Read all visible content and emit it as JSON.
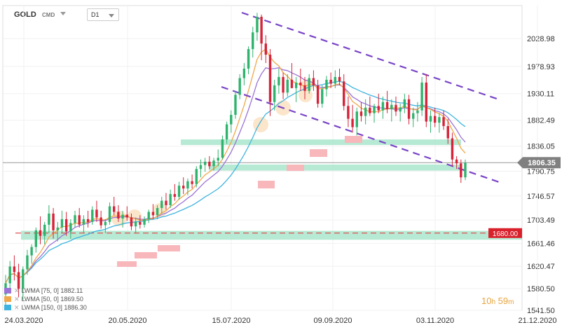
{
  "toolbar": {
    "symbol": "GOLD",
    "symbol_type": "CMD",
    "interval": "D1"
  },
  "chart_data": {
    "type": "candlestick",
    "instrument": "GOLD",
    "timeframe": "D1",
    "ylim": [
      1530,
      2095
    ],
    "y_ticks": [
      "2028.98",
      "1978.93",
      "1930.11",
      "1882.49",
      "1836.05",
      "1790.75",
      "1746.57",
      "1703.49",
      "1661.46",
      "1620.47",
      "1580.50",
      "1541.50"
    ],
    "x_ticks": [
      "24.03.2020",
      "20.05.2020",
      "15.07.2020",
      "09.09.2020",
      "03.11.2020",
      "21.12.2020"
    ],
    "current_price": "1806.35",
    "level_label": "1680.00",
    "level_value": 1680.0,
    "moving_averages": [
      {
        "label": "LWMA",
        "period": 75,
        "shift": 0,
        "value": "1882.11",
        "color": "#9b73d6"
      },
      {
        "label": "LWMA",
        "period": 50,
        "shift": 0,
        "value": "1869.50",
        "color": "#f0a84a"
      },
      {
        "label": "LWMA",
        "period": 150,
        "shift": 0,
        "value": "1886.30",
        "color": "#3fb4e0"
      }
    ],
    "candles": [
      {
        "o": 1570,
        "h": 1605,
        "l": 1545,
        "c": 1590
      },
      {
        "o": 1590,
        "h": 1630,
        "l": 1575,
        "c": 1620
      },
      {
        "o": 1620,
        "h": 1640,
        "l": 1595,
        "c": 1610
      },
      {
        "o": 1610,
        "h": 1625,
        "l": 1565,
        "c": 1580
      },
      {
        "o": 1580,
        "h": 1620,
        "l": 1560,
        "c": 1615
      },
      {
        "o": 1615,
        "h": 1650,
        "l": 1605,
        "c": 1640
      },
      {
        "o": 1640,
        "h": 1660,
        "l": 1625,
        "c": 1655
      },
      {
        "o": 1655,
        "h": 1690,
        "l": 1645,
        "c": 1685
      },
      {
        "o": 1685,
        "h": 1710,
        "l": 1660,
        "c": 1675
      },
      {
        "o": 1675,
        "h": 1700,
        "l": 1660,
        "c": 1695
      },
      {
        "o": 1695,
        "h": 1730,
        "l": 1680,
        "c": 1715
      },
      {
        "o": 1715,
        "h": 1725,
        "l": 1670,
        "c": 1685
      },
      {
        "o": 1685,
        "h": 1700,
        "l": 1665,
        "c": 1690
      },
      {
        "o": 1690,
        "h": 1720,
        "l": 1680,
        "c": 1705
      },
      {
        "o": 1705,
        "h": 1718,
        "l": 1675,
        "c": 1683
      },
      {
        "o": 1683,
        "h": 1705,
        "l": 1670,
        "c": 1698
      },
      {
        "o": 1698,
        "h": 1720,
        "l": 1690,
        "c": 1712
      },
      {
        "o": 1712,
        "h": 1725,
        "l": 1690,
        "c": 1695
      },
      {
        "o": 1695,
        "h": 1712,
        "l": 1680,
        "c": 1705
      },
      {
        "o": 1705,
        "h": 1720,
        "l": 1690,
        "c": 1700
      },
      {
        "o": 1700,
        "h": 1728,
        "l": 1695,
        "c": 1722
      },
      {
        "o": 1722,
        "h": 1738,
        "l": 1700,
        "c": 1708
      },
      {
        "o": 1708,
        "h": 1720,
        "l": 1688,
        "c": 1694
      },
      {
        "o": 1694,
        "h": 1705,
        "l": 1680,
        "c": 1700
      },
      {
        "o": 1700,
        "h": 1735,
        "l": 1695,
        "c": 1728
      },
      {
        "o": 1728,
        "h": 1745,
        "l": 1712,
        "c": 1718
      },
      {
        "o": 1718,
        "h": 1730,
        "l": 1700,
        "c": 1706
      },
      {
        "o": 1706,
        "h": 1720,
        "l": 1690,
        "c": 1713
      },
      {
        "o": 1713,
        "h": 1728,
        "l": 1702,
        "c": 1708
      },
      {
        "o": 1708,
        "h": 1715,
        "l": 1685,
        "c": 1692
      },
      {
        "o": 1692,
        "h": 1708,
        "l": 1680,
        "c": 1700
      },
      {
        "o": 1700,
        "h": 1712,
        "l": 1688,
        "c": 1695
      },
      {
        "o": 1695,
        "h": 1710,
        "l": 1690,
        "c": 1705
      },
      {
        "o": 1705,
        "h": 1722,
        "l": 1698,
        "c": 1718
      },
      {
        "o": 1718,
        "h": 1732,
        "l": 1705,
        "c": 1712
      },
      {
        "o": 1712,
        "h": 1730,
        "l": 1705,
        "c": 1725
      },
      {
        "o": 1725,
        "h": 1745,
        "l": 1715,
        "c": 1738
      },
      {
        "o": 1738,
        "h": 1752,
        "l": 1722,
        "c": 1730
      },
      {
        "o": 1730,
        "h": 1758,
        "l": 1725,
        "c": 1750
      },
      {
        "o": 1750,
        "h": 1768,
        "l": 1738,
        "c": 1745
      },
      {
        "o": 1745,
        "h": 1772,
        "l": 1740,
        "c": 1765
      },
      {
        "o": 1765,
        "h": 1780,
        "l": 1750,
        "c": 1760
      },
      {
        "o": 1760,
        "h": 1778,
        "l": 1748,
        "c": 1773
      },
      {
        "o": 1773,
        "h": 1785,
        "l": 1760,
        "c": 1768
      },
      {
        "o": 1768,
        "h": 1800,
        "l": 1762,
        "c": 1795
      },
      {
        "o": 1795,
        "h": 1812,
        "l": 1780,
        "c": 1802
      },
      {
        "o": 1802,
        "h": 1815,
        "l": 1790,
        "c": 1808
      },
      {
        "o": 1808,
        "h": 1818,
        "l": 1795,
        "c": 1800
      },
      {
        "o": 1800,
        "h": 1815,
        "l": 1792,
        "c": 1810
      },
      {
        "o": 1810,
        "h": 1830,
        "l": 1800,
        "c": 1815
      },
      {
        "o": 1815,
        "h": 1855,
        "l": 1812,
        "c": 1848
      },
      {
        "o": 1848,
        "h": 1880,
        "l": 1840,
        "c": 1875
      },
      {
        "o": 1875,
        "h": 1900,
        "l": 1860,
        "c": 1892
      },
      {
        "o": 1892,
        "h": 1935,
        "l": 1885,
        "c": 1928
      },
      {
        "o": 1928,
        "h": 1965,
        "l": 1920,
        "c": 1958
      },
      {
        "o": 1958,
        "h": 1985,
        "l": 1945,
        "c": 1975
      },
      {
        "o": 1975,
        "h": 2015,
        "l": 1965,
        "c": 2010
      },
      {
        "o": 2010,
        "h": 2050,
        "l": 1995,
        "c": 2040
      },
      {
        "o": 2040,
        "h": 2075,
        "l": 2025,
        "c": 2068
      },
      {
        "o": 2068,
        "h": 2072,
        "l": 1990,
        "c": 2020
      },
      {
        "o": 2020,
        "h": 2035,
        "l": 1985,
        "c": 2000
      },
      {
        "o": 2000,
        "h": 2010,
        "l": 1890,
        "c": 1915
      },
      {
        "o": 1915,
        "h": 1955,
        "l": 1900,
        "c": 1945
      },
      {
        "o": 1945,
        "h": 1975,
        "l": 1930,
        "c": 1960
      },
      {
        "o": 1960,
        "h": 1968,
        "l": 1920,
        "c": 1932
      },
      {
        "o": 1932,
        "h": 1965,
        "l": 1925,
        "c": 1955
      },
      {
        "o": 1955,
        "h": 1985,
        "l": 1940,
        "c": 1940
      },
      {
        "o": 1940,
        "h": 1960,
        "l": 1915,
        "c": 1950
      },
      {
        "o": 1950,
        "h": 1975,
        "l": 1935,
        "c": 1945
      },
      {
        "o": 1945,
        "h": 1960,
        "l": 1920,
        "c": 1935
      },
      {
        "o": 1935,
        "h": 1965,
        "l": 1930,
        "c": 1958
      },
      {
        "o": 1958,
        "h": 1972,
        "l": 1935,
        "c": 1945
      },
      {
        "o": 1945,
        "h": 1955,
        "l": 1905,
        "c": 1912
      },
      {
        "o": 1912,
        "h": 1945,
        "l": 1905,
        "c": 1938
      },
      {
        "o": 1938,
        "h": 1962,
        "l": 1925,
        "c": 1955
      },
      {
        "o": 1955,
        "h": 1968,
        "l": 1940,
        "c": 1948
      },
      {
        "o": 1948,
        "h": 1972,
        "l": 1940,
        "c": 1960
      },
      {
        "o": 1960,
        "h": 1975,
        "l": 1945,
        "c": 1952
      },
      {
        "o": 1952,
        "h": 1965,
        "l": 1900,
        "c": 1908
      },
      {
        "o": 1908,
        "h": 1925,
        "l": 1870,
        "c": 1885
      },
      {
        "o": 1885,
        "h": 1910,
        "l": 1860,
        "c": 1870
      },
      {
        "o": 1870,
        "h": 1905,
        "l": 1855,
        "c": 1898
      },
      {
        "o": 1898,
        "h": 1915,
        "l": 1880,
        "c": 1890
      },
      {
        "o": 1890,
        "h": 1920,
        "l": 1875,
        "c": 1905
      },
      {
        "o": 1905,
        "h": 1925,
        "l": 1890,
        "c": 1895
      },
      {
        "o": 1895,
        "h": 1912,
        "l": 1878,
        "c": 1908
      },
      {
        "o": 1908,
        "h": 1930,
        "l": 1895,
        "c": 1900
      },
      {
        "o": 1900,
        "h": 1925,
        "l": 1885,
        "c": 1915
      },
      {
        "o": 1915,
        "h": 1935,
        "l": 1895,
        "c": 1902
      },
      {
        "o": 1902,
        "h": 1920,
        "l": 1880,
        "c": 1910
      },
      {
        "o": 1910,
        "h": 1925,
        "l": 1890,
        "c": 1898
      },
      {
        "o": 1898,
        "h": 1912,
        "l": 1880,
        "c": 1905
      },
      {
        "o": 1905,
        "h": 1930,
        "l": 1895,
        "c": 1920
      },
      {
        "o": 1920,
        "h": 1928,
        "l": 1875,
        "c": 1885
      },
      {
        "o": 1885,
        "h": 1905,
        "l": 1870,
        "c": 1895
      },
      {
        "o": 1895,
        "h": 1915,
        "l": 1880,
        "c": 1900
      },
      {
        "o": 1900,
        "h": 1960,
        "l": 1890,
        "c": 1950
      },
      {
        "o": 1950,
        "h": 1965,
        "l": 1870,
        "c": 1880
      },
      {
        "o": 1880,
        "h": 1900,
        "l": 1860,
        "c": 1890
      },
      {
        "o": 1890,
        "h": 1905,
        "l": 1870,
        "c": 1878
      },
      {
        "o": 1878,
        "h": 1895,
        "l": 1860,
        "c": 1888
      },
      {
        "o": 1888,
        "h": 1900,
        "l": 1865,
        "c": 1872
      },
      {
        "o": 1872,
        "h": 1885,
        "l": 1840,
        "c": 1850
      },
      {
        "o": 1850,
        "h": 1860,
        "l": 1800,
        "c": 1812
      },
      {
        "o": 1812,
        "h": 1818,
        "l": 1795,
        "c": 1805
      },
      {
        "o": 1805,
        "h": 1812,
        "l": 1770,
        "c": 1780
      },
      {
        "o": 1780,
        "h": 1812,
        "l": 1775,
        "c": 1806
      }
    ]
  },
  "countdown": {
    "hours": "10",
    "h_unit": "h",
    "minutes": "59",
    "m_unit": "m"
  },
  "colors": {
    "bull": "#2fb36d",
    "bear": "#d6243a",
    "channel": "#7a45c7",
    "support_zone": "#9fe3c6",
    "demand_box": "#f8b7bb",
    "highlight_circle": "#fbe2c2",
    "level_line": "#e05050",
    "price_tag": "#808080",
    "level_tag": "#d9212c"
  }
}
